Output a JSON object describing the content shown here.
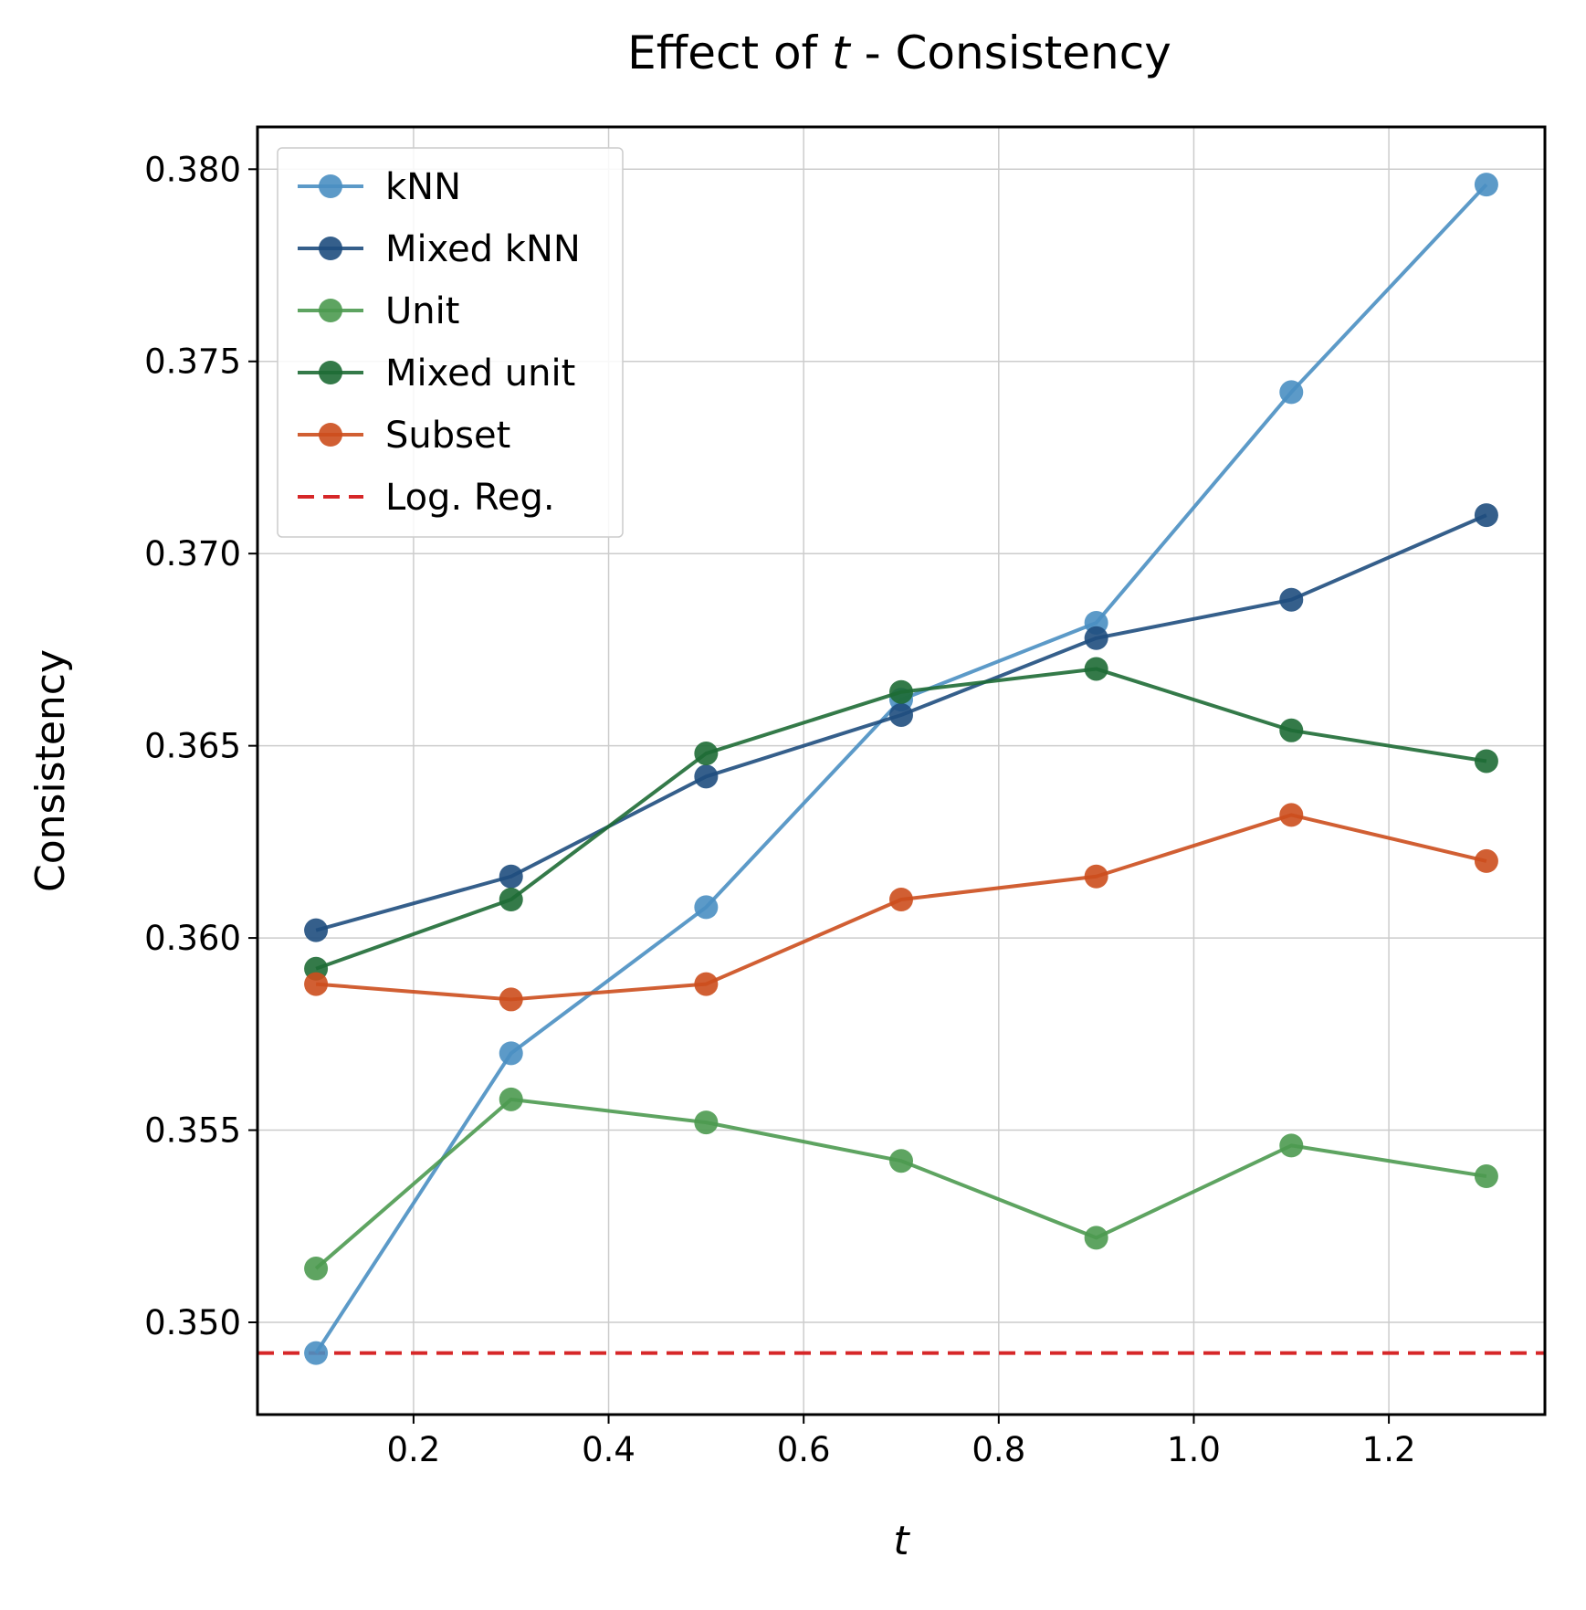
{
  "chart_data": {
    "type": "line",
    "title": {
      "prefix": "Effect of ",
      "var": "t",
      "suffix": " - Consistency"
    },
    "xlabel": "t",
    "ylabel": "Consistency",
    "x": [
      0.1,
      0.3,
      0.5,
      0.7,
      0.9,
      1.1,
      1.3
    ],
    "xlim": [
      0.04,
      1.36
    ],
    "ylim": [
      0.3476,
      0.3811
    ],
    "xticks": [
      0.2,
      0.4,
      0.6,
      0.8,
      1.0,
      1.2
    ],
    "xtick_labels": [
      "0.2",
      "0.4",
      "0.6",
      "0.8",
      "1.0",
      "1.2"
    ],
    "yticks": [
      0.35,
      0.355,
      0.36,
      0.365,
      0.37,
      0.375,
      0.38
    ],
    "ytick_labels": [
      "0.350",
      "0.355",
      "0.360",
      "0.365",
      "0.370",
      "0.375",
      "0.380"
    ],
    "grid": true,
    "legend_position": "top-left",
    "series": [
      {
        "name": "kNN",
        "color": "#4a8fc2",
        "values": [
          0.3492,
          0.357,
          0.3608,
          0.3662,
          0.3682,
          0.3742,
          0.3796
        ]
      },
      {
        "name": "Mixed kNN",
        "color": "#1f4e7e",
        "values": [
          0.3602,
          0.3616,
          0.3642,
          0.3658,
          0.3678,
          0.3688,
          0.371
        ]
      },
      {
        "name": "Unit",
        "color": "#4c9a50",
        "values": [
          0.3514,
          0.3558,
          0.3552,
          0.3542,
          0.3522,
          0.3546,
          0.3538
        ]
      },
      {
        "name": "Mixed unit",
        "color": "#1e6b35",
        "values": [
          0.3592,
          0.361,
          0.3648,
          0.3664,
          0.367,
          0.3654,
          0.3646
        ]
      },
      {
        "name": "Subset",
        "color": "#cc4e1d",
        "values": [
          0.3588,
          0.3584,
          0.3588,
          0.361,
          0.3616,
          0.3632,
          0.362
        ]
      }
    ],
    "hlines": [
      {
        "name": "Log. Reg.",
        "color": "#d62728",
        "value": 0.3492,
        "style": "dashed"
      }
    ]
  }
}
